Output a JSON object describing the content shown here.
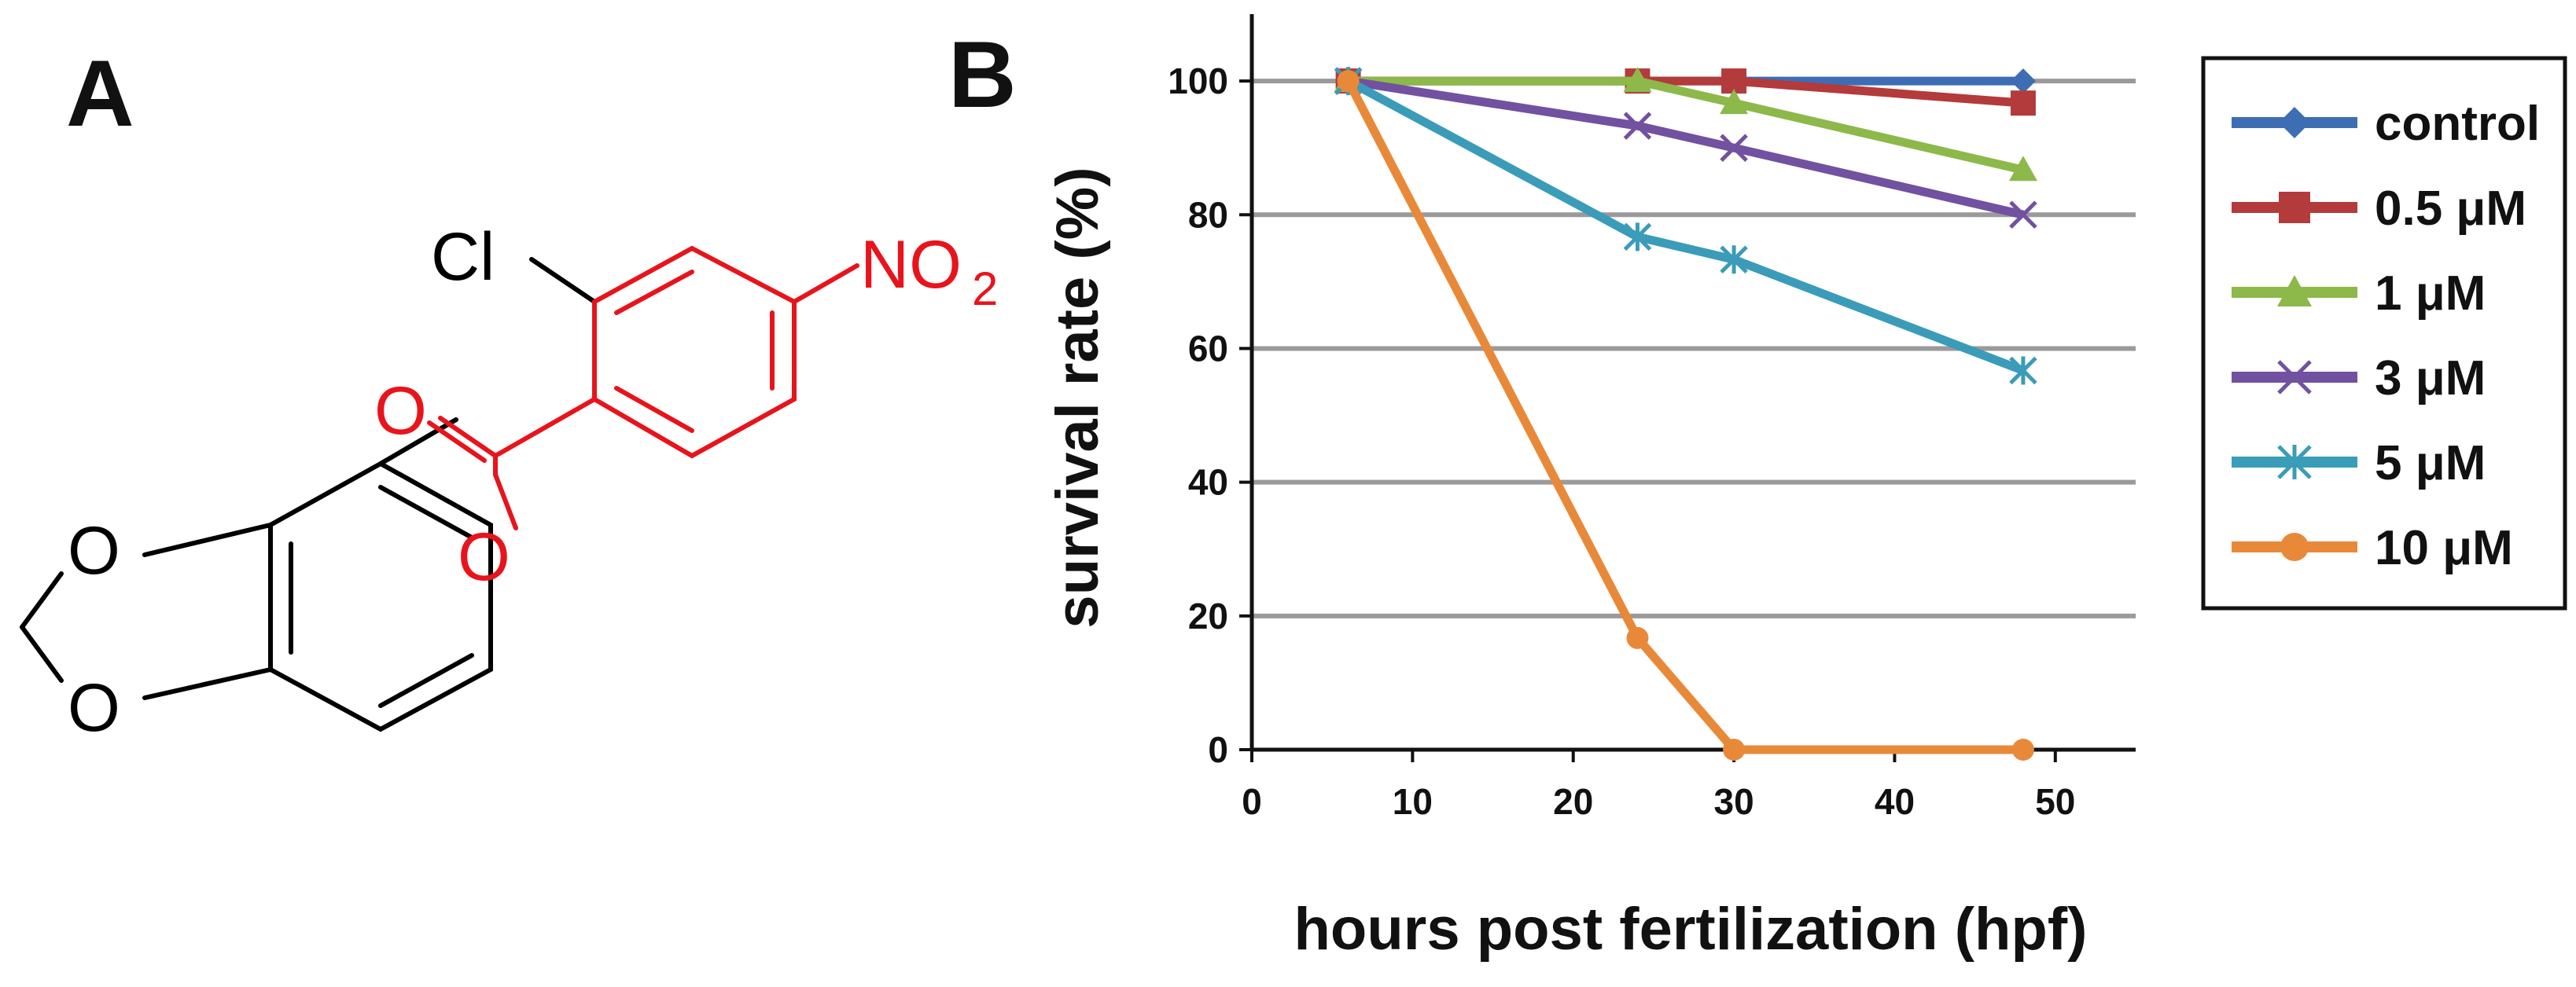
{
  "panel_a": {
    "label": "A",
    "atoms": {
      "cl": "Cl",
      "nitro": "NO",
      "nitro_sub": "2",
      "carbonyl_o": "O",
      "ester_o": "O",
      "ring_o1": "O",
      "ring_o2": "O"
    },
    "colors": {
      "highlight": "#e8141c",
      "bond": "#000000"
    }
  },
  "panel_b": {
    "label": "B"
  },
  "chart_data": {
    "type": "line",
    "title": "",
    "xlabel": "hours post fertilization (hpf)",
    "ylabel": "survival rate (%)",
    "xlim": [
      0,
      55
    ],
    "ylim": [
      0,
      110
    ],
    "xticks": [
      0,
      10,
      20,
      30,
      40,
      50
    ],
    "yticks": [
      0,
      20,
      40,
      60,
      80,
      100
    ],
    "grid": "horizontal",
    "legend_position": "right",
    "series": [
      {
        "name": "control",
        "color": "#3d6eb4",
        "marker": "diamond",
        "x": [
          6,
          24,
          30,
          48
        ],
        "values": [
          100,
          100,
          100,
          100
        ]
      },
      {
        "name": "0.5 μM",
        "color": "#b33b3b",
        "marker": "square",
        "x": [
          6,
          24,
          30,
          48
        ],
        "values": [
          100,
          100,
          100,
          96.7
        ]
      },
      {
        "name": "1 μM",
        "color": "#8db84a",
        "marker": "triangle",
        "x": [
          6,
          24,
          30,
          48
        ],
        "values": [
          100,
          100,
          96.7,
          86.7
        ]
      },
      {
        "name": "3 μM",
        "color": "#7151a0",
        "marker": "x",
        "x": [
          6,
          24,
          30,
          48
        ],
        "values": [
          100,
          93.3,
          90,
          80
        ]
      },
      {
        "name": "5 μM",
        "color": "#3a9cb8",
        "marker": "star",
        "x": [
          6,
          24,
          30,
          48
        ],
        "values": [
          100,
          76.7,
          73.3,
          56.7
        ]
      },
      {
        "name": "10 μM",
        "color": "#e8893a",
        "marker": "circle",
        "x": [
          6,
          24,
          30,
          48
        ],
        "values": [
          100,
          16.7,
          0,
          0
        ]
      }
    ]
  }
}
